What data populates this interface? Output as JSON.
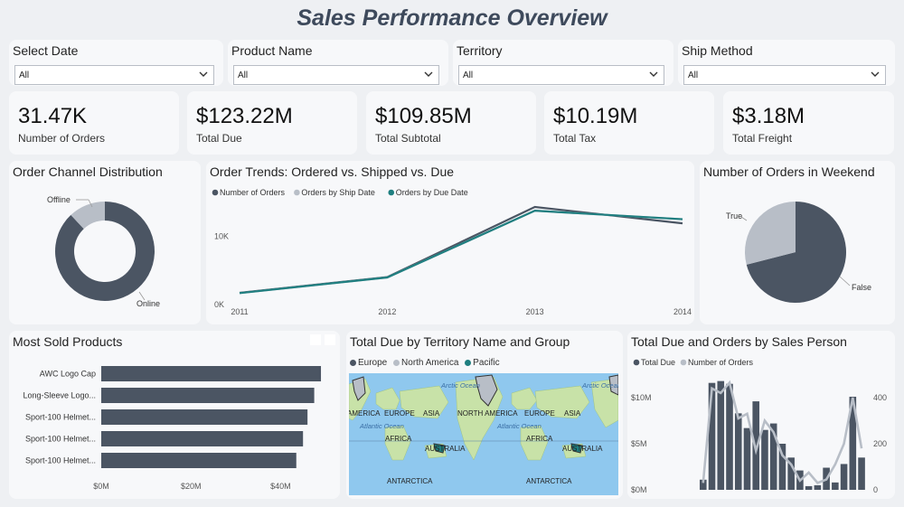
{
  "title": "Sales Performance Overview",
  "slicers": [
    {
      "label": "Select Date",
      "value": "All"
    },
    {
      "label": "Product Name",
      "value": "All"
    },
    {
      "label": "Territory",
      "value": "All"
    },
    {
      "label": "Ship Method",
      "value": "All"
    }
  ],
  "kpis": [
    {
      "value": "31.47K",
      "label": "Number of Orders"
    },
    {
      "value": "$123.22M",
      "label": "Total Due"
    },
    {
      "value": "$109.85M",
      "label": "Total Subtotal"
    },
    {
      "value": "$10.19M",
      "label": "Total Tax"
    },
    {
      "value": "$3.18M",
      "label": "Total Freight"
    }
  ],
  "colors": {
    "dark": "#4b5563",
    "gray": "#b8bec7",
    "teal": "#1f7f80",
    "europe": "#4b5563",
    "north_america": "#b8bec7",
    "pacific": "#1f7f80",
    "ocean": "#8fc8ee",
    "land": "#c8e2a8"
  },
  "map": {
    "title": "Total Due by Territory Name and Group",
    "legend": [
      "Europe",
      "North America",
      "Pacific"
    ],
    "labels": [
      "AMERICA",
      "EUROPE",
      "ASIA",
      "NORTH AMERICA",
      "EUROPE",
      "ASIA",
      "Arctic Ocean",
      "Arctic Ocean",
      "Atlantic Ocean",
      "Atlantic Ocean",
      "AFRICA",
      "AFRICA",
      "AUSTRALIA",
      "AUSTRALIA",
      "ANTARCTICA",
      "ANTARCTICA"
    ]
  },
  "chart_data": [
    {
      "type": "pie",
      "title": "Order Channel Distribution",
      "donut": true,
      "labels": [
        "Online",
        "Offline"
      ],
      "values": [
        88,
        12
      ]
    },
    {
      "type": "line",
      "title": "Order Trends: Ordered vs. Shipped vs. Due",
      "x": [
        "2011",
        "2012",
        "2013",
        "2014"
      ],
      "yticks": [
        "0K",
        "10K"
      ],
      "ylim": [
        0,
        15000
      ],
      "series": [
        {
          "name": "Number of Orders",
          "values": [
            1600,
            3900,
            14200,
            11800
          ]
        },
        {
          "name": "Orders by Ship Date",
          "values": [
            1550,
            3850,
            13650,
            12400
          ]
        },
        {
          "name": "Orders by Due Date",
          "values": [
            1550,
            3850,
            13650,
            12400
          ]
        }
      ]
    },
    {
      "type": "pie",
      "title": "Number of Orders in Weekend",
      "labels": [
        "False",
        "True"
      ],
      "values": [
        71,
        29
      ]
    },
    {
      "type": "bar",
      "orientation": "horizontal",
      "title": "Most Sold Products",
      "categories": [
        "AWC Logo Cap",
        "Long-Sleeve Logo...",
        "Sport-100 Helmet...",
        "Sport-100 Helmet...",
        "Sport-100 Helmet..."
      ],
      "values": [
        49,
        47.5,
        46,
        45,
        43.5
      ],
      "xticks": [
        "$0M",
        "$20M",
        "$40M"
      ],
      "xlim": [
        0,
        50
      ]
    },
    {
      "type": "bar",
      "title": "Total Due and Orders by Sales Person",
      "legend": [
        "Total Due",
        "Number of Orders"
      ],
      "yticks_left": [
        "$0M",
        "$5M",
        "$10M"
      ],
      "yticks_right": [
        "0",
        "200",
        "400"
      ],
      "ylim_left": [
        0,
        10
      ],
      "ylim_right": [
        0,
        450
      ],
      "series": [
        {
          "name": "Total Due",
          "type": "bar",
          "values": [
            1.1,
            11.6,
            12.0,
            11.5,
            8.3,
            6.7,
            9.6,
            6.5,
            7.2,
            5.0,
            3.5,
            2.1,
            0.4,
            0.5,
            2.4,
            0.8,
            2.8,
            10.1,
            3.5
          ]
        },
        {
          "name": "Number of Orders",
          "type": "line",
          "values": [
            30,
            440,
            420,
            465,
            310,
            330,
            170,
            300,
            250,
            150,
            110,
            40,
            75,
            30,
            45,
            110,
            200,
            400,
            180
          ]
        }
      ]
    }
  ]
}
